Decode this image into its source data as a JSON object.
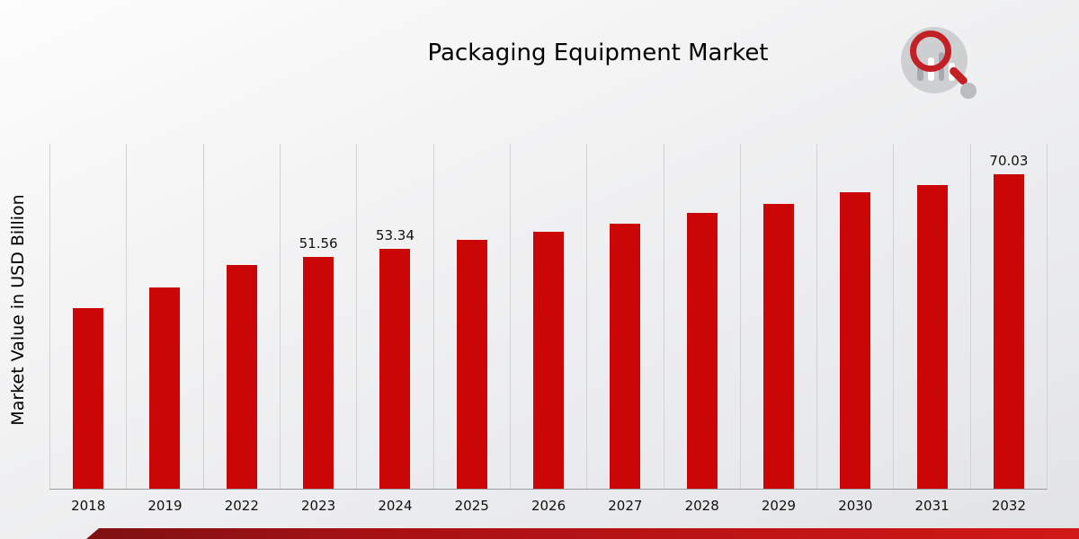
{
  "chart_data": {
    "type": "bar",
    "title": "Packaging Equipment Market",
    "xlabel": "",
    "ylabel": "Market Value in USD Billion",
    "categories": [
      "2018",
      "2019",
      "2022",
      "2023",
      "2024",
      "2025",
      "2026",
      "2027",
      "2028",
      "2029",
      "2030",
      "2031",
      "2032"
    ],
    "values": [
      40.3,
      44.9,
      49.8,
      51.56,
      53.34,
      55.5,
      57.3,
      59.0,
      61.5,
      63.5,
      66.0,
      67.7,
      70.03
    ],
    "data_labels": [
      "",
      "",
      "",
      "51.56",
      "53.34",
      "",
      "",
      "",
      "",
      "",
      "",
      "",
      "70.03"
    ],
    "bar_color": "#cb0606",
    "ylim": [
      0,
      77
    ],
    "grid": "vertical-gridlines",
    "legend": "none"
  }
}
